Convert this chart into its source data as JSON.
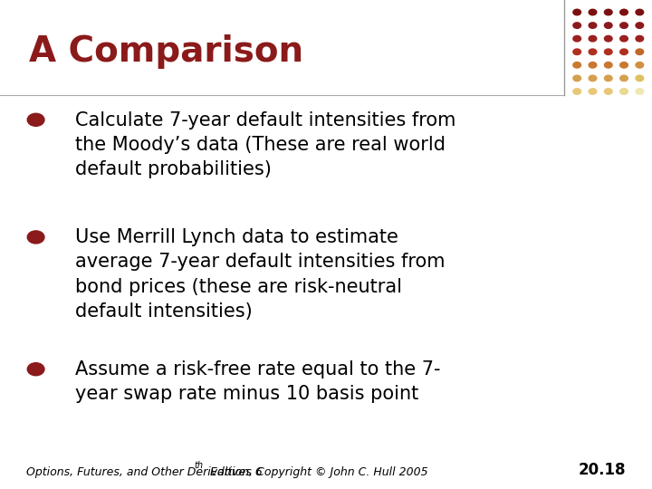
{
  "title": "A Comparison",
  "title_color": "#8B1A1A",
  "title_fontsize": 28,
  "background_color": "#FFFFFF",
  "bullet_color": "#8B1A1A",
  "text_color": "#000000",
  "bullets": [
    "Calculate 7-year default intensities from\nthe Moody’s data (These are real world\ndefault probabilities)",
    "Use Merrill Lynch data to estimate\naverage 7-year default intensities from\nbond prices (these are risk-neutral\ndefault intensities)",
    "Assume a risk-free rate equal to the 7-\nyear swap rate minus 10 basis point"
  ],
  "footer_text": "Options, Futures, and Other Derivatives 6",
  "footer_superscript": "th",
  "footer_suffix": " Edition, Copyright © John C. Hull 2005",
  "footer_page": "20.18",
  "footer_fontsize": 9,
  "text_fontsize": 15,
  "dot_colors": [
    [
      "#7B1010",
      "#7B1010",
      "#7B1010",
      "#7B1010",
      "#7B1010"
    ],
    [
      "#8B1A1A",
      "#8B1A1A",
      "#8B1A1A",
      "#8B1A1A",
      "#8B1A1A"
    ],
    [
      "#9B2020",
      "#9B2020",
      "#9B2020",
      "#9B2020",
      "#9B2020"
    ],
    [
      "#B03020",
      "#B03020",
      "#B03020",
      "#B03020",
      "#C06828"
    ],
    [
      "#C87830",
      "#C87830",
      "#C87830",
      "#C87830",
      "#D09040"
    ],
    [
      "#D4A050",
      "#D4A050",
      "#D4A050",
      "#D4A050",
      "#E0C060"
    ],
    [
      "#E8C878",
      "#E8C878",
      "#E8C878",
      "#E8D890",
      "#F0E8B0"
    ]
  ]
}
